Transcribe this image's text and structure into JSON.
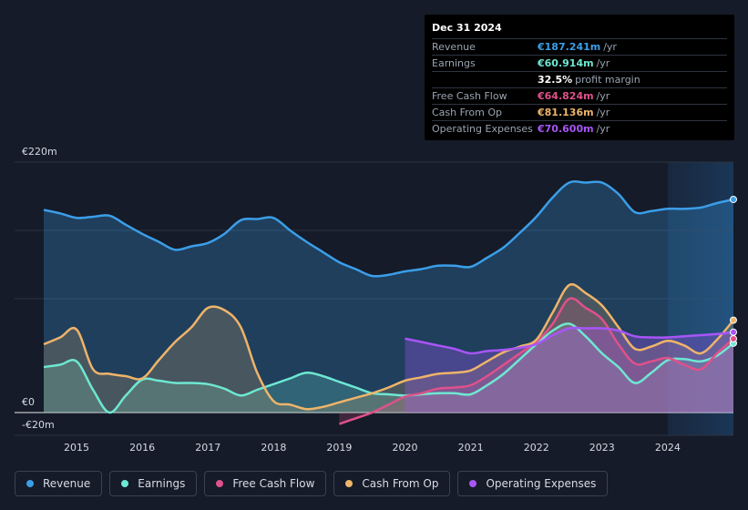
{
  "tooltip": {
    "date": "Dec 31 2024",
    "rows": [
      {
        "label": "Revenue",
        "value": "€187.241m",
        "unit": "/yr",
        "color": "#3b9ee8"
      },
      {
        "label": "Earnings",
        "value": "€60.914m",
        "unit": "/yr",
        "color": "#6ee7d2"
      },
      {
        "label": "",
        "value": "32.5%",
        "unit": "profit margin",
        "color": "#ffffff"
      },
      {
        "label": "Free Cash Flow",
        "value": "€64.824m",
        "unit": "/yr",
        "color": "#e0518a"
      },
      {
        "label": "Cash From Op",
        "value": "€81.136m",
        "unit": "/yr",
        "color": "#efb46a"
      },
      {
        "label": "Operating Expenses",
        "value": "€70.600m",
        "unit": "/yr",
        "color": "#a855f7"
      }
    ]
  },
  "legend": [
    {
      "name": "Revenue",
      "color": "#3b9ee8"
    },
    {
      "name": "Earnings",
      "color": "#6ee7d2"
    },
    {
      "name": "Free Cash Flow",
      "color": "#e0518a"
    },
    {
      "name": "Cash From Op",
      "color": "#efb46a"
    },
    {
      "name": "Operating Expenses",
      "color": "#a855f7"
    }
  ],
  "chart_data": {
    "type": "area",
    "title": "",
    "xlabel": "",
    "ylabel": "",
    "y_label_top": "€220m",
    "y_label_zero": "€0",
    "y_label_bottom": "-€20m",
    "ylim": [
      -20,
      220
    ],
    "xlim": [
      2014.5,
      2025.0
    ],
    "x_ticks": [
      2015,
      2016,
      2017,
      2018,
      2019,
      2020,
      2021,
      2022,
      2023,
      2024
    ],
    "forecast_start": 2024.0,
    "series": [
      {
        "name": "Revenue",
        "color": "#3b9ee8",
        "x": [
          2014.5,
          2014.75,
          2015.0,
          2015.25,
          2015.5,
          2015.75,
          2016.0,
          2016.25,
          2016.5,
          2016.75,
          2017.0,
          2017.25,
          2017.5,
          2017.75,
          2018.0,
          2018.25,
          2018.5,
          2018.75,
          2019.0,
          2019.25,
          2019.5,
          2019.75,
          2020.0,
          2020.25,
          2020.5,
          2020.75,
          2021.0,
          2021.25,
          2021.5,
          2021.75,
          2022.0,
          2022.25,
          2022.5,
          2022.75,
          2023.0,
          2023.25,
          2023.5,
          2023.75,
          2024.0,
          2024.25,
          2024.5,
          2024.75,
          2025.0
        ],
        "values": [
          178,
          175,
          171,
          172,
          173,
          165,
          157,
          150,
          143,
          146,
          149,
          157,
          169,
          170,
          171,
          160,
          150,
          141,
          132,
          126,
          120,
          121,
          124,
          126,
          129,
          129,
          128,
          136,
          145,
          158,
          172,
          189,
          202,
          202,
          202,
          192,
          176,
          177,
          179,
          179,
          180,
          184,
          187.241
        ]
      },
      {
        "name": "Earnings",
        "color": "#6ee7d2",
        "x": [
          2014.5,
          2014.75,
          2015.0,
          2015.25,
          2015.5,
          2015.75,
          2016.0,
          2016.25,
          2016.5,
          2016.75,
          2017.0,
          2017.25,
          2017.5,
          2017.75,
          2018.0,
          2018.25,
          2018.5,
          2018.75,
          2019.0,
          2019.25,
          2019.5,
          2019.75,
          2020.0,
          2020.25,
          2020.5,
          2020.75,
          2021.0,
          2021.25,
          2021.5,
          2021.75,
          2022.0,
          2022.25,
          2022.5,
          2022.75,
          2023.0,
          2023.25,
          2023.5,
          2023.75,
          2024.0,
          2024.25,
          2024.5,
          2024.75,
          2025.0
        ],
        "values": [
          40,
          42,
          45,
          20,
          0,
          15,
          29,
          28,
          26,
          26,
          25,
          21,
          15,
          20,
          25,
          30,
          35,
          32,
          27,
          22,
          17,
          16,
          15,
          16,
          17,
          17,
          16,
          24,
          34,
          47,
          60,
          72,
          78,
          67,
          52,
          40,
          26,
          35,
          46,
          47,
          45,
          50,
          60.914
        ]
      },
      {
        "name": "Free Cash Flow",
        "color": "#e0518a",
        "x": [
          2019.0,
          2019.25,
          2019.5,
          2019.75,
          2020.0,
          2020.25,
          2020.5,
          2020.75,
          2021.0,
          2021.25,
          2021.5,
          2021.75,
          2022.0,
          2022.25,
          2022.5,
          2022.75,
          2023.0,
          2023.25,
          2023.5,
          2023.75,
          2024.0,
          2024.25,
          2024.5,
          2024.75,
          2025.0
        ],
        "values": [
          -10,
          -5,
          0,
          7,
          14,
          17,
          21,
          22,
          24,
          32,
          42,
          52,
          62,
          78,
          100,
          92,
          82,
          60,
          43,
          45,
          48,
          42,
          38,
          52,
          64.824
        ]
      },
      {
        "name": "Cash From Op",
        "color": "#efb46a",
        "x": [
          2014.5,
          2014.75,
          2015.0,
          2015.25,
          2015.5,
          2015.75,
          2016.0,
          2016.25,
          2016.5,
          2016.75,
          2017.0,
          2017.25,
          2017.5,
          2017.75,
          2018.0,
          2018.25,
          2018.5,
          2018.75,
          2019.0,
          2019.25,
          2019.5,
          2019.75,
          2020.0,
          2020.25,
          2020.5,
          2020.75,
          2021.0,
          2021.25,
          2021.5,
          2021.75,
          2022.0,
          2022.25,
          2022.5,
          2022.75,
          2023.0,
          2023.25,
          2023.5,
          2023.75,
          2024.0,
          2024.25,
          2024.5,
          2024.75,
          2025.0
        ],
        "values": [
          60,
          66,
          73,
          38,
          34,
          32,
          30,
          46,
          62,
          75,
          92,
          90,
          75,
          35,
          10,
          7,
          3,
          5,
          9,
          13,
          17,
          22,
          28,
          31,
          34,
          35,
          37,
          45,
          53,
          58,
          64,
          88,
          112,
          105,
          94,
          75,
          56,
          58,
          63,
          59,
          52,
          64,
          81.136
        ]
      },
      {
        "name": "Operating Expenses",
        "color": "#a855f7",
        "x": [
          2020.0,
          2020.25,
          2020.5,
          2020.75,
          2021.0,
          2021.25,
          2021.5,
          2021.75,
          2022.0,
          2022.25,
          2022.5,
          2022.75,
          2023.0,
          2023.25,
          2023.5,
          2023.75,
          2024.0,
          2024.25,
          2024.5,
          2024.75,
          2025.0
        ],
        "values": [
          65,
          62,
          59,
          56,
          52,
          54,
          55,
          57,
          60,
          68,
          74,
          74,
          74,
          72,
          67,
          66,
          66,
          67,
          68,
          69,
          70.6
        ]
      }
    ]
  }
}
